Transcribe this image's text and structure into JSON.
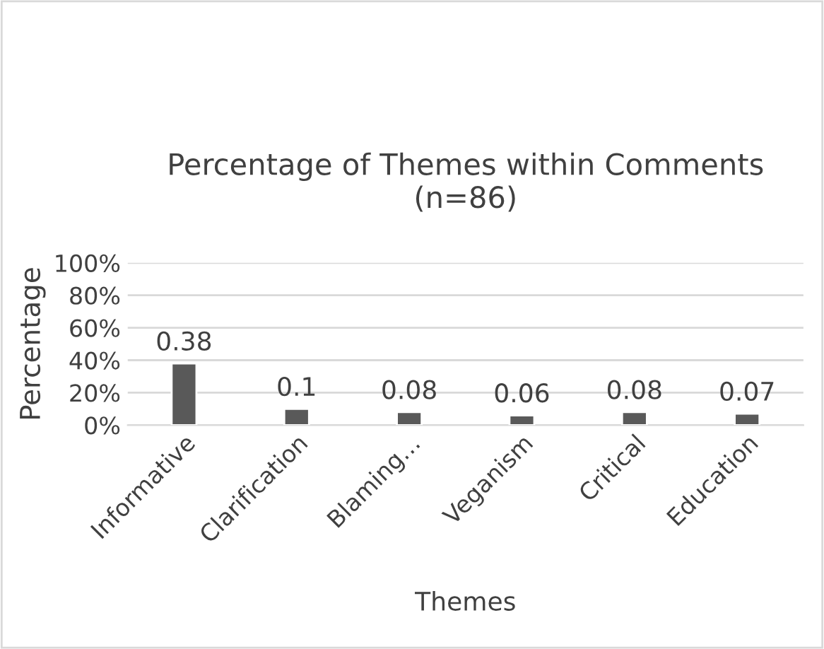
{
  "chart_data": {
    "type": "bar",
    "title": "Percentage of Themes within Comments\n(n=86)",
    "xlabel": "Themes",
    "ylabel": "Percentage",
    "categories": [
      "Informative",
      "Clarification",
      "Blaming…",
      "Veganism",
      "Critical",
      "Education"
    ],
    "values": [
      0.38,
      0.1,
      0.08,
      0.06,
      0.08,
      0.07
    ],
    "color": "#595959",
    "ylim": [
      0,
      1
    ],
    "yticks": [
      {
        "value": 0,
        "label": "0%"
      },
      {
        "value": 0.2,
        "label": "20%"
      },
      {
        "value": 0.4,
        "label": "40%"
      },
      {
        "value": 0.6,
        "label": "60%"
      },
      {
        "value": 0.8,
        "label": "80%"
      },
      {
        "value": 1,
        "label": "100%"
      }
    ],
    "grid": "y",
    "data_labels": true
  }
}
